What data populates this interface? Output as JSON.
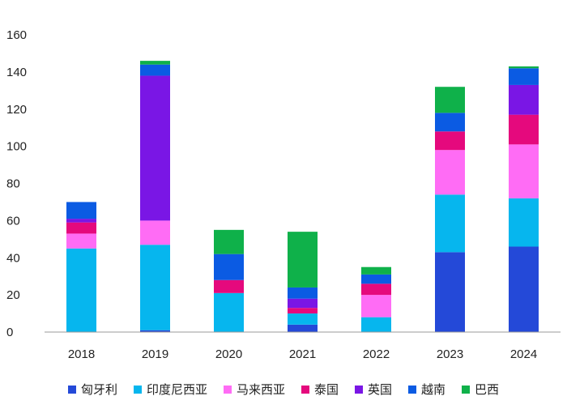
{
  "chart_data": {
    "type": "bar",
    "stacked": true,
    "categories": [
      "2018",
      "2019",
      "2020",
      "2021",
      "2022",
      "2023",
      "2024"
    ],
    "ylim": [
      0,
      160
    ],
    "yticks": [
      0,
      20,
      40,
      60,
      80,
      100,
      120,
      140,
      160
    ],
    "grid": false,
    "legend_position": "bottom",
    "series": [
      {
        "name": "匈牙利",
        "color": "#2449d8",
        "values": [
          0,
          1,
          0,
          4,
          0,
          43,
          46
        ]
      },
      {
        "name": "印度尼西亚",
        "color": "#06b6ee",
        "values": [
          45,
          46,
          21,
          6,
          8,
          31,
          26
        ]
      },
      {
        "name": "马来西亚",
        "color": "#ff6cf5",
        "values": [
          8,
          13,
          0,
          0,
          12,
          24,
          29
        ]
      },
      {
        "name": "泰国",
        "color": "#e5097d",
        "values": [
          6,
          0,
          7,
          3,
          6,
          10,
          16
        ]
      },
      {
        "name": "英国",
        "color": "#7a16e5",
        "values": [
          2,
          78,
          0,
          5,
          0,
          0,
          16
        ]
      },
      {
        "name": "越南",
        "color": "#0b5be3",
        "values": [
          9,
          6,
          14,
          6,
          5,
          10,
          9
        ]
      },
      {
        "name": "巴西",
        "color": "#0fb14a",
        "values": [
          0,
          2,
          13,
          30,
          4,
          14,
          1
        ]
      }
    ]
  }
}
